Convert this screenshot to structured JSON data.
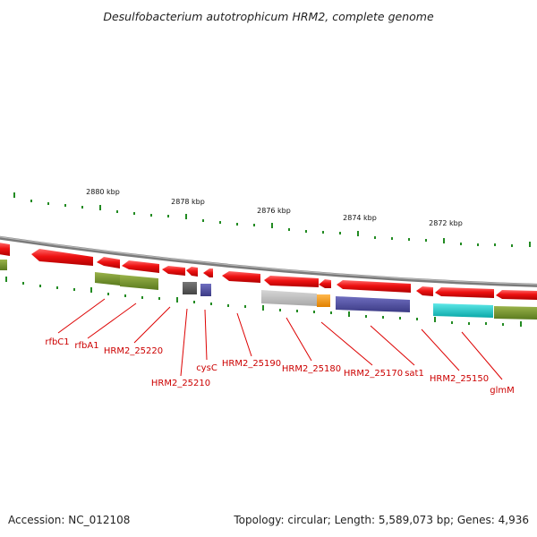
{
  "title": "Desulfobacterium autotrophicum HRM2, complete genome",
  "footer": {
    "accession": "Accession: NC_012108",
    "summary": "Topology: circular; Length: 5,589,073 bp; Genes: 4,936"
  },
  "scale_labels": [
    "2880 kbp",
    "2878 kbp",
    "2876 kbp",
    "2874 kbp",
    "2872 kbp"
  ],
  "gene_labels": [
    "rfbC1",
    "rfbA1",
    "HRM2_25220",
    "HRM2_25210",
    "cysC",
    "HRM2_25190",
    "HRM2_25180",
    "HRM2_25170",
    "sat1",
    "HRM2_25150",
    "glmM"
  ],
  "colors": {
    "gene_red": "#ee1111",
    "backbone": "#888888",
    "tick_green": "#228b22",
    "olive": "#6b8e23",
    "slate_blue": "#4b4aa0",
    "dark_gray": "#555555",
    "light_gray": "#bbbbbb",
    "orange": "#ff9900",
    "cyan": "#11cccc",
    "label_red": "#cc0000"
  }
}
